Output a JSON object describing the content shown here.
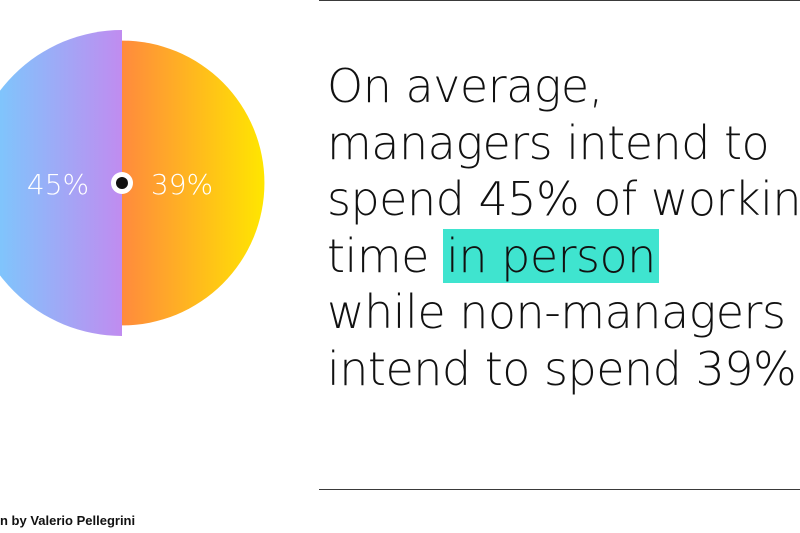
{
  "chart_data": {
    "type": "pie",
    "series": [
      {
        "label": "45%",
        "value": 45,
        "color_start": "#6fd3ff",
        "color_end": "#c08cf0"
      },
      {
        "label": "39%",
        "value": 39,
        "color_start": "#ff8a3d",
        "color_end": "#ffe600"
      }
    ]
  },
  "headline": {
    "line1": "On average,",
    "line2": "managers intend to",
    "line3": "spend 45% of workin",
    "line4_pre": "time ",
    "line4_highlight": "in person",
    "line5": "while non-managers",
    "line6": "intend to spend 39%"
  },
  "credit": "n by Valerio Pellegrini",
  "colors": {
    "highlight": "#3fe4cf",
    "rule": "#3a3a3a",
    "text": "#111111"
  }
}
